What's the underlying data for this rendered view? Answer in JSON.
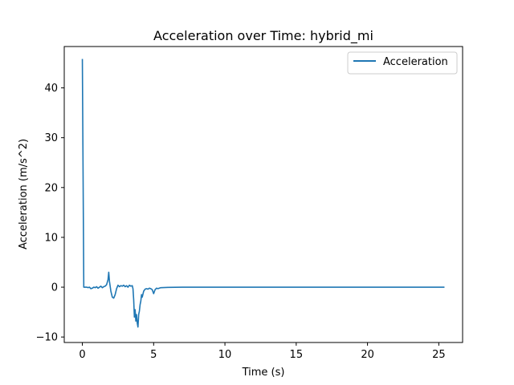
{
  "chart_data": {
    "type": "line",
    "title": "Acceleration over Time: hybrid_mi",
    "xlabel": "Time (s)",
    "ylabel": "Acceleration (m/s^2)",
    "xlim": [
      -1.27,
      26.67
    ],
    "ylim": [
      -11.1,
      48.3
    ],
    "x_ticks": [
      0,
      5,
      10,
      15,
      20,
      25
    ],
    "y_ticks": [
      -10,
      0,
      10,
      20,
      30,
      40
    ],
    "grid": false,
    "legend": {
      "position": "top-right",
      "entries": [
        "Acceleration"
      ]
    },
    "colors": {
      "series": "#1f77b4",
      "axes": "#000000",
      "background": "#ffffff"
    },
    "series": [
      {
        "name": "Acceleration",
        "x": [
          0.0,
          0.1,
          0.2,
          0.3,
          0.4,
          0.5,
          0.6,
          0.7,
          0.8,
          0.9,
          1.0,
          1.1,
          1.2,
          1.3,
          1.4,
          1.5,
          1.6,
          1.7,
          1.8,
          1.85,
          1.9,
          2.0,
          2.1,
          2.2,
          2.3,
          2.4,
          2.5,
          2.6,
          2.7,
          2.8,
          2.9,
          3.0,
          3.1,
          3.2,
          3.3,
          3.4,
          3.5,
          3.55,
          3.6,
          3.65,
          3.7,
          3.75,
          3.8,
          3.85,
          3.9,
          3.95,
          4.0,
          4.05,
          4.1,
          4.15,
          4.2,
          4.3,
          4.4,
          4.5,
          4.6,
          4.7,
          4.8,
          4.9,
          5.0,
          5.1,
          5.2,
          5.3,
          5.5,
          6.0,
          7.0,
          8.0,
          10.0,
          15.0,
          20.0,
          25.4
        ],
        "y": [
          45.8,
          0.0,
          0.0,
          0.0,
          -0.1,
          0.0,
          -0.3,
          -0.2,
          0.0,
          -0.1,
          0.1,
          -0.2,
          0.0,
          0.2,
          -0.1,
          0.1,
          0.2,
          0.5,
          1.5,
          3.0,
          1.2,
          -0.8,
          -2.0,
          -2.2,
          -1.5,
          -0.3,
          0.4,
          0.1,
          0.3,
          0.2,
          0.4,
          0.1,
          0.3,
          0.0,
          0.4,
          0.2,
          0.3,
          -0.3,
          -2.5,
          -6.0,
          -4.5,
          -6.8,
          -5.5,
          -7.2,
          -8.0,
          -5.5,
          -4.8,
          -3.5,
          -2.8,
          -1.5,
          -2.0,
          -0.8,
          -0.4,
          -0.3,
          -0.4,
          -0.2,
          -0.3,
          -0.5,
          -1.3,
          -0.5,
          -0.2,
          -0.3,
          -0.1,
          -0.05,
          0.0,
          0.0,
          0.0,
          0.0,
          0.0,
          0.0
        ]
      }
    ]
  }
}
